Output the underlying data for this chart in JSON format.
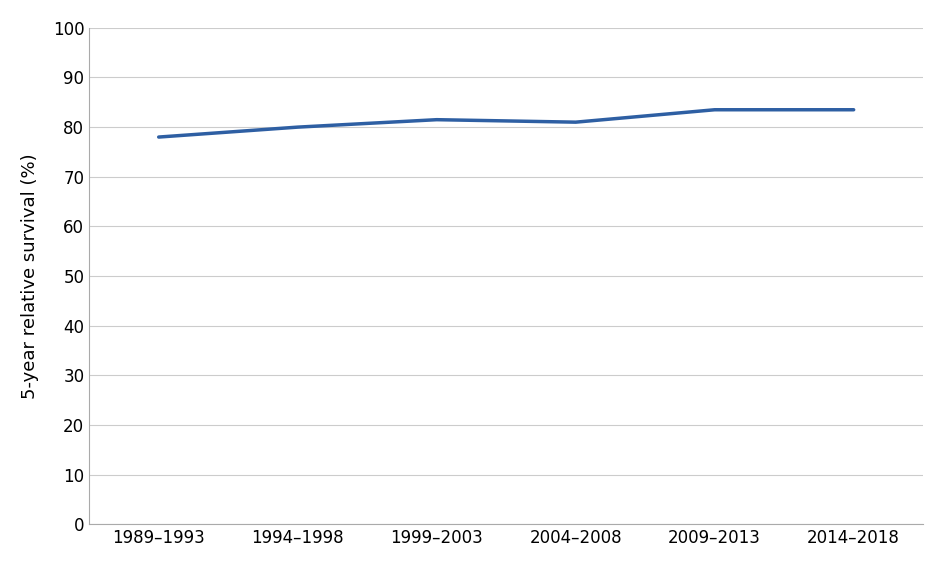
{
  "x_labels": [
    "1989–1993",
    "1994–1998",
    "1999–2003",
    "2004–2008",
    "2009–2013",
    "2014–2018"
  ],
  "y_values": [
    78.0,
    80.0,
    81.5,
    81.0,
    83.5,
    83.5
  ],
  "line_color": "#2E5FA3",
  "line_width": 2.5,
  "ylabel": "5-year relative survival (%)",
  "ylim": [
    0,
    100
  ],
  "yticks": [
    0,
    10,
    20,
    30,
    40,
    50,
    60,
    70,
    80,
    90,
    100
  ],
  "grid_color": "#CCCCCC",
  "background_color": "#FFFFFF",
  "border_color": "#AAAAAA",
  "ylabel_fontsize": 13,
  "tick_fontsize": 12
}
